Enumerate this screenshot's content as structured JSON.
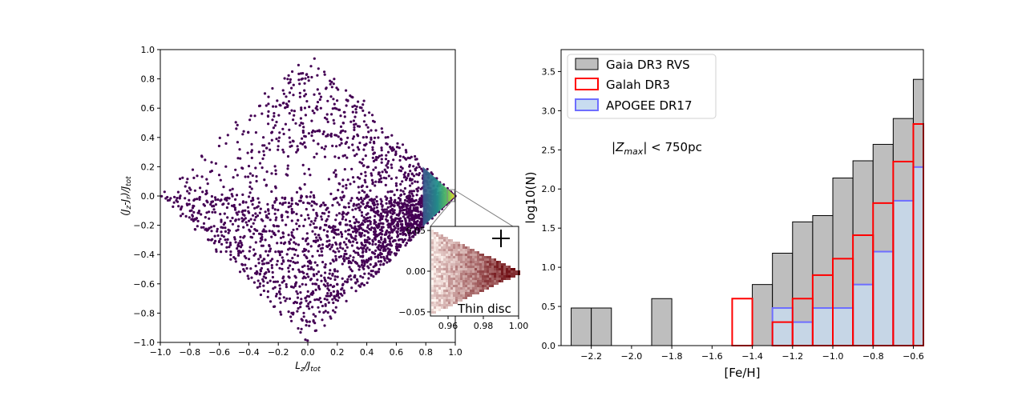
{
  "chart_data": [
    {
      "type": "scatter",
      "xlabel": "L_z/J_tot",
      "ylabel": "(J_z-J_r)/J_tot",
      "xlim": [
        -1.0,
        1.0
      ],
      "ylim": [
        -1.0,
        1.0
      ],
      "x_ticks": [
        "−1.0",
        "−0.8",
        "−0.6",
        "−0.4",
        "−0.2",
        "0.0",
        "0.2",
        "0.4",
        "0.6",
        "0.8",
        "1.0"
      ],
      "y_ticks": [
        "−1.0",
        "−0.8",
        "−0.6",
        "−0.4",
        "−0.2",
        "0.0",
        "0.2",
        "0.4",
        "0.6",
        "0.8",
        "1.0"
      ],
      "colormap": "viridis",
      "point_color": "#440154",
      "grid": false,
      "inset": {
        "type": "heatmap",
        "xlim": [
          0.95,
          1.0
        ],
        "ylim": [
          -0.055,
          0.055
        ],
        "x_ticks": [
          "0.96",
          "0.98",
          "1.00"
        ],
        "y_ticks": [
          "0.05",
          "0.00",
          "−0.05"
        ],
        "annotation": "Thin disc",
        "colormap": "Reds"
      }
    },
    {
      "type": "bar",
      "xlabel": "[Fe/H]",
      "ylabel": "log10(N)",
      "xlim": [
        -2.35,
        -0.55
      ],
      "ylim": [
        0,
        3.78
      ],
      "bin_width": 0.1,
      "x_ticks": [
        "−2.2",
        "−2.0",
        "−1.8",
        "−1.6",
        "−1.4",
        "−1.2",
        "−1.0",
        "−0.8",
        "−0.6"
      ],
      "y_ticks": [
        "0.0",
        "0.5",
        "1.0",
        "1.5",
        "2.0",
        "2.5",
        "3.0",
        "3.5"
      ],
      "annotation": "|Z_max| < 750pc",
      "legend_position": "top-left",
      "grid": false,
      "series": [
        {
          "name": "Gaia DR3 RVS",
          "color": "#bebebe",
          "edge": "#000000",
          "bins": [
            {
              "x0": -2.3,
              "v": 0.48
            },
            {
              "x0": -2.2,
              "v": 0.48
            },
            {
              "x0": -2.1,
              "v": 0.0
            },
            {
              "x0": -1.9,
              "v": 0.6
            },
            {
              "x0": -1.8,
              "v": 0.0
            },
            {
              "x0": -1.5,
              "v": 0.0
            },
            {
              "x0": -1.4,
              "v": 0.78
            },
            {
              "x0": -1.3,
              "v": 1.18
            },
            {
              "x0": -1.2,
              "v": 1.58
            },
            {
              "x0": -1.1,
              "v": 1.66
            },
            {
              "x0": -1.0,
              "v": 2.14
            },
            {
              "x0": -0.9,
              "v": 2.36
            },
            {
              "x0": -0.8,
              "v": 2.57
            },
            {
              "x0": -0.7,
              "v": 2.9
            },
            {
              "x0": -0.6,
              "v": 3.4
            }
          ]
        },
        {
          "name": "Galah DR3",
          "color": "#ff0000",
          "bins": [
            {
              "x0": -2.4,
              "v": 0.0
            },
            {
              "x0": -1.7,
              "v": 0.0
            },
            {
              "x0": -1.6,
              "v": 0.0
            },
            {
              "x0": -1.5,
              "v": 0.6
            },
            {
              "x0": -1.4,
              "v": 0.0
            },
            {
              "x0": -1.3,
              "v": 0.3
            },
            {
              "x0": -1.2,
              "v": 0.6
            },
            {
              "x0": -1.1,
              "v": 0.9
            },
            {
              "x0": -1.0,
              "v": 1.11
            },
            {
              "x0": -0.9,
              "v": 1.41
            },
            {
              "x0": -0.8,
              "v": 1.82
            },
            {
              "x0": -0.7,
              "v": 2.35
            },
            {
              "x0": -0.6,
              "v": 2.83
            }
          ]
        },
        {
          "name": "APOGEE DR17",
          "color": "#6e6eff",
          "fill": "#c8dcf0",
          "bins": [
            {
              "x0": -1.3,
              "v": 0.48
            },
            {
              "x0": -1.2,
              "v": 0.3
            },
            {
              "x0": -1.1,
              "v": 0.48
            },
            {
              "x0": -1.0,
              "v": 0.48
            },
            {
              "x0": -0.9,
              "v": 0.78
            },
            {
              "x0": -0.8,
              "v": 1.2
            },
            {
              "x0": -0.7,
              "v": 1.85
            },
            {
              "x0": -0.6,
              "v": 2.28
            }
          ]
        }
      ]
    }
  ]
}
